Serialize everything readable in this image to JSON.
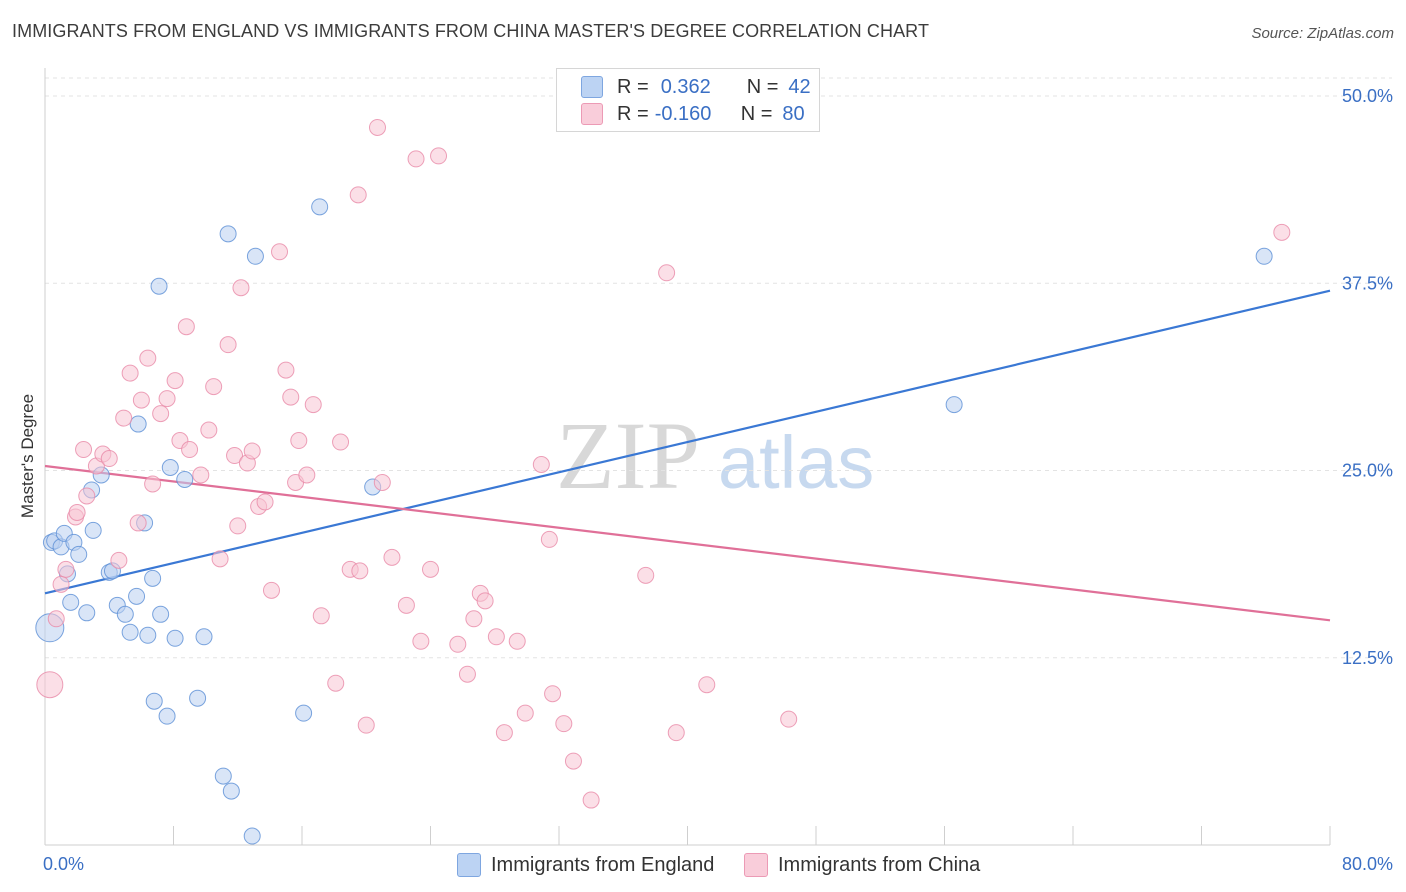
{
  "header": {
    "title": "IMMIGRANTS FROM ENGLAND VS IMMIGRANTS FROM CHINA MASTER'S DEGREE CORRELATION CHART",
    "source": "Source: ZipAtlas.com"
  },
  "watermark": {
    "zip": "ZIP",
    "atlas": "atlas"
  },
  "stats_legend": {
    "rows": [
      {
        "r_label": "R =",
        "r_value": "0.362",
        "n_label": "N =",
        "n_value": "42",
        "color": "#8fb3e8"
      },
      {
        "r_label": "R =",
        "r_value": "-0.160",
        "n_label": "N =",
        "n_value": "80",
        "color": "#f2a7bf"
      }
    ]
  },
  "bottom_legend": {
    "england": "Immigrants from England",
    "china": "Immigrants from China"
  },
  "chart_data": {
    "type": "scatter",
    "title": "IMMIGRANTS FROM ENGLAND VS IMMIGRANTS FROM CHINA MASTER'S DEGREE CORRELATION CHART",
    "xlabel": "",
    "ylabel": "Master's Degree",
    "xlim": [
      0,
      80
    ],
    "ylim": [
      0,
      50
    ],
    "x_tick_labels": [
      "0.0%",
      "80.0%"
    ],
    "y_ticks": [
      12.5,
      25.0,
      37.5,
      50.0
    ],
    "y_tick_labels": [
      "12.5%",
      "25.0%",
      "37.5%",
      "50.0%"
    ],
    "grid": true,
    "series": [
      {
        "name": "Immigrants from England",
        "color": "#5b8fd6",
        "fill": "#b9d0f1",
        "trend": {
          "x0": 0,
          "y0": 16.8,
          "x1": 80,
          "y1": 37.0,
          "color": "#3a78d4"
        },
        "points": [
          [
            0.4,
            20.2
          ],
          [
            0.6,
            20.3
          ],
          [
            1.0,
            19.9
          ],
          [
            1.2,
            20.8
          ],
          [
            1.4,
            18.1
          ],
          [
            1.8,
            20.2
          ],
          [
            2.1,
            19.4
          ],
          [
            2.6,
            15.5
          ],
          [
            2.9,
            23.7
          ],
          [
            3.0,
            21.0
          ],
          [
            3.5,
            24.7
          ],
          [
            4.0,
            18.2
          ],
          [
            4.2,
            18.3
          ],
          [
            4.5,
            16.0
          ],
          [
            5.0,
            15.4
          ],
          [
            5.3,
            14.2
          ],
          [
            5.7,
            16.6
          ],
          [
            5.8,
            28.1
          ],
          [
            6.2,
            21.5
          ],
          [
            6.4,
            14.0
          ],
          [
            6.7,
            17.8
          ],
          [
            7.1,
            37.3
          ],
          [
            7.2,
            15.4
          ],
          [
            7.6,
            8.6
          ],
          [
            7.8,
            25.2
          ],
          [
            8.1,
            13.8
          ],
          [
            8.7,
            24.4
          ],
          [
            9.5,
            9.8
          ],
          [
            9.9,
            13.9
          ],
          [
            11.1,
            4.6
          ],
          [
            11.4,
            40.8
          ],
          [
            11.6,
            3.6
          ],
          [
            12.9,
            0.6
          ],
          [
            13.1,
            39.3
          ],
          [
            16.1,
            8.8
          ],
          [
            17.1,
            42.6
          ],
          [
            20.4,
            23.9
          ],
          [
            56.6,
            29.4
          ],
          [
            75.9,
            39.3
          ],
          [
            0.3,
            14.5
          ],
          [
            6.8,
            9.6
          ],
          [
            1.6,
            16.2
          ]
        ]
      },
      {
        "name": "Immigrants from China",
        "color": "#e889a8",
        "fill": "#f7c4d4",
        "trend": {
          "x0": 0,
          "y0": 25.3,
          "x1": 80,
          "y1": 15.0,
          "color": "#e07098"
        },
        "points": [
          [
            0.3,
            10.7
          ],
          [
            0.7,
            15.1
          ],
          [
            1.0,
            17.4
          ],
          [
            1.3,
            18.4
          ],
          [
            1.9,
            21.9
          ],
          [
            2.0,
            22.2
          ],
          [
            2.4,
            26.4
          ],
          [
            2.6,
            23.3
          ],
          [
            3.2,
            25.3
          ],
          [
            3.6,
            26.1
          ],
          [
            4.0,
            25.8
          ],
          [
            4.6,
            19.0
          ],
          [
            4.9,
            28.5
          ],
          [
            5.3,
            31.5
          ],
          [
            5.8,
            21.5
          ],
          [
            6.0,
            29.7
          ],
          [
            6.4,
            32.5
          ],
          [
            6.7,
            24.1
          ],
          [
            7.2,
            28.8
          ],
          [
            7.6,
            29.8
          ],
          [
            8.1,
            31.0
          ],
          [
            8.4,
            27.0
          ],
          [
            8.8,
            34.6
          ],
          [
            9.0,
            26.4
          ],
          [
            9.7,
            24.7
          ],
          [
            10.2,
            27.7
          ],
          [
            10.5,
            30.6
          ],
          [
            10.9,
            19.1
          ],
          [
            11.4,
            33.4
          ],
          [
            11.8,
            26.0
          ],
          [
            12.2,
            37.2
          ],
          [
            12.6,
            25.5
          ],
          [
            12.9,
            26.3
          ],
          [
            13.3,
            22.6
          ],
          [
            13.7,
            22.9
          ],
          [
            14.1,
            17.0
          ],
          [
            14.6,
            39.6
          ],
          [
            15.0,
            31.7
          ],
          [
            15.3,
            29.9
          ],
          [
            15.6,
            24.2
          ],
          [
            15.8,
            27.0
          ],
          [
            16.3,
            24.7
          ],
          [
            16.7,
            29.4
          ],
          [
            17.2,
            15.3
          ],
          [
            18.1,
            10.8
          ],
          [
            18.4,
            26.9
          ],
          [
            19.0,
            18.4
          ],
          [
            19.5,
            43.4
          ],
          [
            19.6,
            18.3
          ],
          [
            20.0,
            8.0
          ],
          [
            20.7,
            47.9
          ],
          [
            21.0,
            24.2
          ],
          [
            21.6,
            19.2
          ],
          [
            22.5,
            16.0
          ],
          [
            23.1,
            45.8
          ],
          [
            24.0,
            18.4
          ],
          [
            23.4,
            13.6
          ],
          [
            24.5,
            46.0
          ],
          [
            25.7,
            13.4
          ],
          [
            26.3,
            11.4
          ],
          [
            26.7,
            15.1
          ],
          [
            27.1,
            16.8
          ],
          [
            27.4,
            16.3
          ],
          [
            28.1,
            13.9
          ],
          [
            28.6,
            7.5
          ],
          [
            29.4,
            13.6
          ],
          [
            29.9,
            8.8
          ],
          [
            30.9,
            25.4
          ],
          [
            31.4,
            20.4
          ],
          [
            31.6,
            10.1
          ],
          [
            32.3,
            8.1
          ],
          [
            32.9,
            5.6
          ],
          [
            34.0,
            3.0
          ],
          [
            37.4,
            18.0
          ],
          [
            38.7,
            38.2
          ],
          [
            39.3,
            7.5
          ],
          [
            41.2,
            10.7
          ],
          [
            46.3,
            8.4
          ],
          [
            77.0,
            40.9
          ],
          [
            12.0,
            21.3
          ]
        ]
      }
    ]
  }
}
